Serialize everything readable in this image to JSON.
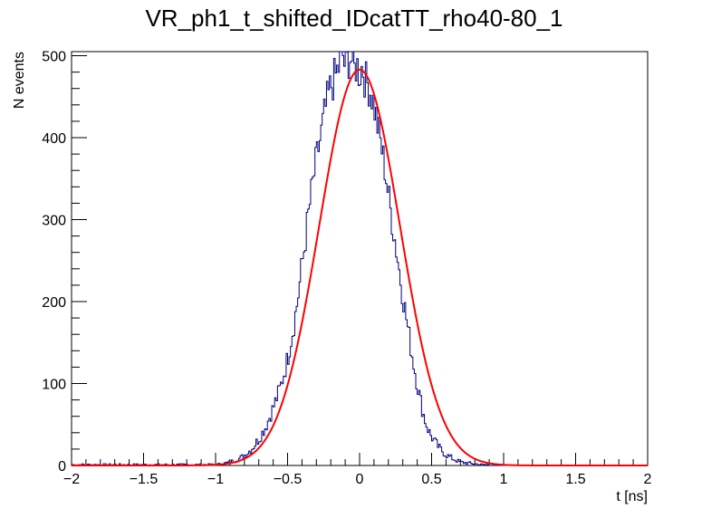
{
  "chart_data": {
    "type": "histogram",
    "title": "VR_ph1_t_shifted_IDcatTT_rho40-80_1",
    "xlabel": "t [ns]",
    "ylabel": "N events",
    "xlim": [
      -2,
      2
    ],
    "ylim": [
      0,
      505
    ],
    "x_ticks": [
      -2,
      -1.5,
      -1,
      -0.5,
      0,
      0.5,
      1,
      1.5,
      2
    ],
    "x_tick_labels": [
      "−2",
      "−1.5",
      "−1",
      "−0.5",
      "0",
      "0.5",
      "1",
      "1.5",
      "2"
    ],
    "y_ticks": [
      0,
      100,
      200,
      300,
      400,
      500
    ],
    "y_tick_labels": [
      "0",
      "100",
      "200",
      "300",
      "400",
      "500"
    ],
    "grid": false,
    "legend": "none",
    "series": [
      {
        "kind": "histogram",
        "color": "#000080",
        "bin_width": 0.01,
        "x": [
          -1.0,
          -0.95,
          -0.9,
          -0.85,
          -0.8,
          -0.75,
          -0.7,
          -0.65,
          -0.6,
          -0.55,
          -0.5,
          -0.48,
          -0.46,
          -0.44,
          -0.42,
          -0.4,
          -0.38,
          -0.36,
          -0.34,
          -0.32,
          -0.3,
          -0.28,
          -0.26,
          -0.24,
          -0.22,
          -0.2,
          -0.18,
          -0.16,
          -0.14,
          -0.12,
          -0.1,
          -0.08,
          -0.06,
          -0.04,
          -0.02,
          0.0,
          0.02,
          0.04,
          0.06,
          0.08,
          0.1,
          0.12,
          0.14,
          0.16,
          0.18,
          0.2,
          0.22,
          0.24,
          0.26,
          0.28,
          0.3,
          0.32,
          0.34,
          0.36,
          0.38,
          0.4,
          0.42,
          0.44,
          0.46,
          0.48,
          0.5,
          0.55,
          0.6,
          0.65,
          0.7,
          0.75,
          0.8,
          0.85,
          0.9,
          0.95,
          1.0
        ],
        "y": [
          1,
          2,
          4,
          7,
          12,
          20,
          32,
          48,
          70,
          95,
          130,
          150,
          168,
          190,
          215,
          245,
          270,
          300,
          325,
          350,
          372,
          392,
          410,
          432,
          448,
          462,
          470,
          478,
          488,
          505,
          485,
          495,
          500,
          480,
          490,
          478,
          488,
          470,
          465,
          455,
          440,
          420,
          400,
          380,
          358,
          330,
          305,
          282,
          258,
          232,
          208,
          185,
          162,
          140,
          120,
          100,
          82,
          65,
          52,
          42,
          35,
          22,
          13,
          8,
          4,
          3,
          2,
          1,
          1,
          0,
          0
        ]
      },
      {
        "kind": "fit-gaussian",
        "color": "#ff0000",
        "amplitude": 483,
        "mean": 0.0,
        "sigma": 0.28
      }
    ]
  }
}
